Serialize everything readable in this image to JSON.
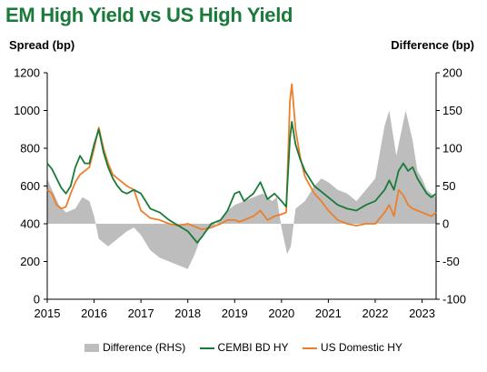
{
  "chart_data": {
    "type": "line",
    "title": "EM High Yield vs US High Yield",
    "ylabel_left": "Spread (bp)",
    "ylabel_right": "Difference (bp)",
    "xlim": [
      2015,
      2023.3
    ],
    "x_ticks": [
      "2015",
      "2016",
      "2017",
      "2018",
      "2019",
      "2020",
      "2021",
      "2022",
      "2023"
    ],
    "ylim_left": [
      0,
      1200
    ],
    "y_ticks_left": [
      "0",
      "200",
      "400",
      "600",
      "800",
      "1000",
      "1200"
    ],
    "ylim_right": [
      -100,
      200
    ],
    "y_ticks_right": [
      "-100",
      "-50",
      "0",
      "50",
      "100",
      "150",
      "200"
    ],
    "colors": {
      "difference": "#bdbdbd",
      "cembi": "#1a7a3a",
      "ushy": "#ec7f2b"
    },
    "series": [
      {
        "name": "Difference (RHS)",
        "axis": "right",
        "kind": "area",
        "points": [
          [
            2015.0,
            60
          ],
          [
            2015.1,
            45
          ],
          [
            2015.25,
            25
          ],
          [
            2015.4,
            15
          ],
          [
            2015.6,
            20
          ],
          [
            2015.75,
            35
          ],
          [
            2015.9,
            30
          ],
          [
            2016.0,
            10
          ],
          [
            2016.1,
            -20
          ],
          [
            2016.3,
            -30
          ],
          [
            2016.5,
            -20
          ],
          [
            2016.7,
            -10
          ],
          [
            2016.85,
            -5
          ],
          [
            2017.0,
            -15
          ],
          [
            2017.2,
            -35
          ],
          [
            2017.4,
            -45
          ],
          [
            2017.6,
            -50
          ],
          [
            2017.8,
            -55
          ],
          [
            2018.0,
            -60
          ],
          [
            2018.15,
            -40
          ],
          [
            2018.3,
            -15
          ],
          [
            2018.5,
            -5
          ],
          [
            2018.7,
            5
          ],
          [
            2018.9,
            20
          ],
          [
            2019.0,
            25
          ],
          [
            2019.2,
            30
          ],
          [
            2019.4,
            35
          ],
          [
            2019.6,
            40
          ],
          [
            2019.8,
            30
          ],
          [
            2019.9,
            35
          ],
          [
            2020.0,
            -5
          ],
          [
            2020.12,
            -40
          ],
          [
            2020.2,
            -30
          ],
          [
            2020.3,
            20
          ],
          [
            2020.5,
            30
          ],
          [
            2020.7,
            50
          ],
          [
            2020.85,
            60
          ],
          [
            2021.0,
            55
          ],
          [
            2021.2,
            45
          ],
          [
            2021.4,
            40
          ],
          [
            2021.6,
            30
          ],
          [
            2021.8,
            45
          ],
          [
            2022.0,
            60
          ],
          [
            2022.2,
            130
          ],
          [
            2022.3,
            150
          ],
          [
            2022.45,
            90
          ],
          [
            2022.55,
            120
          ],
          [
            2022.65,
            150
          ],
          [
            2022.8,
            110
          ],
          [
            2022.9,
            70
          ],
          [
            2023.0,
            60
          ],
          [
            2023.1,
            45
          ],
          [
            2023.2,
            40
          ],
          [
            2023.3,
            35
          ]
        ]
      },
      {
        "name": "CEMBI BD HY",
        "axis": "left",
        "kind": "line",
        "points": [
          [
            2015.0,
            720
          ],
          [
            2015.1,
            690
          ],
          [
            2015.2,
            640
          ],
          [
            2015.3,
            590
          ],
          [
            2015.4,
            560
          ],
          [
            2015.5,
            600
          ],
          [
            2015.6,
            700
          ],
          [
            2015.7,
            760
          ],
          [
            2015.8,
            720
          ],
          [
            2015.9,
            720
          ],
          [
            2016.0,
            820
          ],
          [
            2016.1,
            900
          ],
          [
            2016.2,
            780
          ],
          [
            2016.3,
            700
          ],
          [
            2016.4,
            640
          ],
          [
            2016.5,
            600
          ],
          [
            2016.6,
            570
          ],
          [
            2016.7,
            560
          ],
          [
            2016.85,
            580
          ],
          [
            2017.0,
            560
          ],
          [
            2017.1,
            520
          ],
          [
            2017.2,
            480
          ],
          [
            2017.4,
            460
          ],
          [
            2017.6,
            420
          ],
          [
            2017.8,
            390
          ],
          [
            2018.0,
            360
          ],
          [
            2018.1,
            330
          ],
          [
            2018.2,
            300
          ],
          [
            2018.3,
            330
          ],
          [
            2018.5,
            400
          ],
          [
            2018.7,
            420
          ],
          [
            2018.85,
            470
          ],
          [
            2019.0,
            560
          ],
          [
            2019.1,
            570
          ],
          [
            2019.2,
            520
          ],
          [
            2019.4,
            560
          ],
          [
            2019.55,
            620
          ],
          [
            2019.7,
            530
          ],
          [
            2019.85,
            560
          ],
          [
            2020.0,
            520
          ],
          [
            2020.1,
            490
          ],
          [
            2020.18,
            850
          ],
          [
            2020.22,
            940
          ],
          [
            2020.3,
            820
          ],
          [
            2020.4,
            740
          ],
          [
            2020.5,
            680
          ],
          [
            2020.7,
            600
          ],
          [
            2020.85,
            570
          ],
          [
            2021.0,
            540
          ],
          [
            2021.2,
            500
          ],
          [
            2021.4,
            480
          ],
          [
            2021.6,
            470
          ],
          [
            2021.8,
            500
          ],
          [
            2022.0,
            520
          ],
          [
            2022.2,
            580
          ],
          [
            2022.3,
            630
          ],
          [
            2022.4,
            580
          ],
          [
            2022.5,
            680
          ],
          [
            2022.6,
            720
          ],
          [
            2022.7,
            680
          ],
          [
            2022.8,
            700
          ],
          [
            2022.9,
            640
          ],
          [
            2023.0,
            600
          ],
          [
            2023.1,
            560
          ],
          [
            2023.2,
            540
          ],
          [
            2023.3,
            560
          ]
        ]
      },
      {
        "name": "US Domestic HY",
        "axis": "left",
        "kind": "line",
        "points": [
          [
            2015.0,
            580
          ],
          [
            2015.1,
            560
          ],
          [
            2015.2,
            500
          ],
          [
            2015.3,
            480
          ],
          [
            2015.4,
            490
          ],
          [
            2015.5,
            560
          ],
          [
            2015.6,
            620
          ],
          [
            2015.7,
            660
          ],
          [
            2015.8,
            680
          ],
          [
            2015.9,
            700
          ],
          [
            2016.0,
            800
          ],
          [
            2016.1,
            910
          ],
          [
            2016.2,
            800
          ],
          [
            2016.3,
            720
          ],
          [
            2016.4,
            660
          ],
          [
            2016.5,
            640
          ],
          [
            2016.6,
            620
          ],
          [
            2016.7,
            600
          ],
          [
            2016.85,
            580
          ],
          [
            2017.0,
            470
          ],
          [
            2017.1,
            450
          ],
          [
            2017.2,
            430
          ],
          [
            2017.4,
            420
          ],
          [
            2017.6,
            400
          ],
          [
            2017.8,
            390
          ],
          [
            2018.0,
            400
          ],
          [
            2018.1,
            390
          ],
          [
            2018.2,
            380
          ],
          [
            2018.3,
            370
          ],
          [
            2018.5,
            380
          ],
          [
            2018.7,
            400
          ],
          [
            2018.85,
            420
          ],
          [
            2019.0,
            420
          ],
          [
            2019.1,
            410
          ],
          [
            2019.2,
            420
          ],
          [
            2019.4,
            440
          ],
          [
            2019.55,
            470
          ],
          [
            2019.7,
            420
          ],
          [
            2019.85,
            440
          ],
          [
            2020.0,
            450
          ],
          [
            2020.1,
            460
          ],
          [
            2020.18,
            1050
          ],
          [
            2020.22,
            1140
          ],
          [
            2020.3,
            900
          ],
          [
            2020.4,
            750
          ],
          [
            2020.5,
            650
          ],
          [
            2020.7,
            560
          ],
          [
            2020.85,
            520
          ],
          [
            2021.0,
            470
          ],
          [
            2021.2,
            420
          ],
          [
            2021.4,
            400
          ],
          [
            2021.6,
            390
          ],
          [
            2021.8,
            400
          ],
          [
            2022.0,
            400
          ],
          [
            2022.2,
            460
          ],
          [
            2022.3,
            500
          ],
          [
            2022.4,
            440
          ],
          [
            2022.5,
            580
          ],
          [
            2022.6,
            550
          ],
          [
            2022.7,
            500
          ],
          [
            2022.8,
            480
          ],
          [
            2022.9,
            470
          ],
          [
            2023.0,
            460
          ],
          [
            2023.1,
            450
          ],
          [
            2023.2,
            440
          ],
          [
            2023.3,
            460
          ]
        ]
      }
    ],
    "legend": {
      "placement": "bottom",
      "items": [
        "Difference (RHS)",
        "CEMBI BD HY",
        "US Domestic HY"
      ]
    }
  }
}
